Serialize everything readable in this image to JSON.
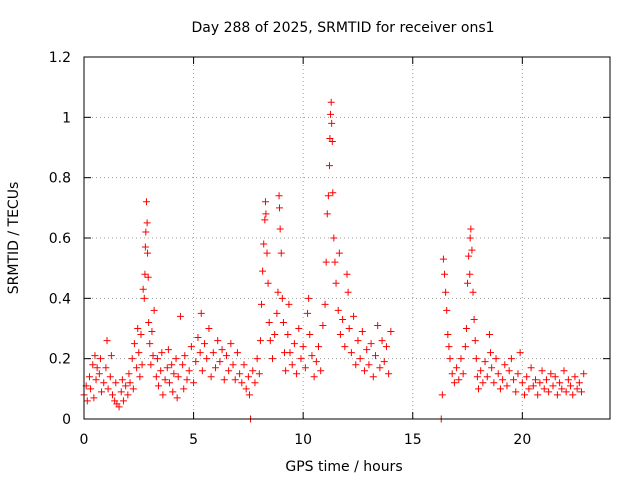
{
  "chart_data": {
    "type": "scatter",
    "title": "Day 288 of 2025, SRMTID for receiver ons1",
    "xlabel": "GPS time / hours",
    "ylabel": "SRMTID / TECUs",
    "xlim": [
      0,
      24
    ],
    "ylim": [
      0,
      1.2
    ],
    "xticks": [
      0,
      5,
      10,
      15,
      20
    ],
    "xtick_labels": [
      "0",
      "5",
      "10",
      "15",
      "20"
    ],
    "yticks": [
      0,
      0.2,
      0.4,
      0.6,
      0.8,
      1.0,
      1.2
    ],
    "ytick_labels": [
      "0",
      "0.2",
      "0.4",
      "0.6",
      "0.8",
      "1",
      "1.2"
    ],
    "grid": true,
    "marker": "+",
    "marker_color": "#ff0000",
    "series": [
      {
        "name": "ons1",
        "points": [
          [
            0.0,
            0.08
          ],
          [
            0.1,
            0.11
          ],
          [
            0.15,
            0.06
          ],
          [
            0.25,
            0.14
          ],
          [
            0.3,
            0.1
          ],
          [
            0.4,
            0.18
          ],
          [
            0.45,
            0.07
          ],
          [
            0.5,
            0.21
          ],
          [
            0.55,
            0.13
          ],
          [
            0.6,
            0.17
          ],
          [
            0.7,
            0.15
          ],
          [
            0.75,
            0.2
          ],
          [
            0.8,
            0.09
          ],
          [
            0.9,
            0.12
          ],
          [
            1.0,
            0.17
          ],
          [
            1.05,
            0.26
          ],
          [
            1.1,
            0.1
          ],
          [
            1.2,
            0.14
          ],
          [
            1.25,
            0.21
          ],
          [
            1.3,
            0.08
          ],
          [
            1.4,
            0.06
          ],
          [
            1.45,
            0.12
          ],
          [
            1.5,
            0.05
          ],
          [
            1.6,
            0.04
          ],
          [
            1.7,
            0.09
          ],
          [
            1.75,
            0.13
          ],
          [
            1.8,
            0.06
          ],
          [
            1.9,
            0.11
          ],
          [
            2.0,
            0.08
          ],
          [
            2.05,
            0.15
          ],
          [
            2.1,
            0.12
          ],
          [
            2.2,
            0.2
          ],
          [
            2.25,
            0.1
          ],
          [
            2.3,
            0.25
          ],
          [
            2.4,
            0.17
          ],
          [
            2.45,
            0.3
          ],
          [
            2.5,
            0.22
          ],
          [
            2.55,
            0.14
          ],
          [
            2.6,
            0.28
          ],
          [
            2.65,
            0.18
          ],
          [
            2.7,
            0.43
          ],
          [
            2.75,
            0.4
          ],
          [
            2.78,
            0.48
          ],
          [
            2.8,
            0.57
          ],
          [
            2.82,
            0.62
          ],
          [
            2.85,
            0.72
          ],
          [
            2.88,
            0.65
          ],
          [
            2.9,
            0.55
          ],
          [
            2.93,
            0.47
          ],
          [
            2.95,
            0.32
          ],
          [
            3.0,
            0.25
          ],
          [
            3.05,
            0.18
          ],
          [
            3.1,
            0.29
          ],
          [
            3.15,
            0.21
          ],
          [
            3.2,
            0.36
          ],
          [
            3.3,
            0.14
          ],
          [
            3.35,
            0.2
          ],
          [
            3.4,
            0.11
          ],
          [
            3.5,
            0.16
          ],
          [
            3.55,
            0.22
          ],
          [
            3.6,
            0.08
          ],
          [
            3.7,
            0.13
          ],
          [
            3.8,
            0.17
          ],
          [
            3.85,
            0.23
          ],
          [
            3.9,
            0.12
          ],
          [
            4.0,
            0.18
          ],
          [
            4.05,
            0.09
          ],
          [
            4.1,
            0.15
          ],
          [
            4.2,
            0.2
          ],
          [
            4.25,
            0.07
          ],
          [
            4.3,
            0.14
          ],
          [
            4.4,
            0.34
          ],
          [
            4.5,
            0.18
          ],
          [
            4.55,
            0.1
          ],
          [
            4.6,
            0.21
          ],
          [
            4.7,
            0.13
          ],
          [
            4.8,
            0.16
          ],
          [
            4.9,
            0.24
          ],
          [
            5.0,
            0.12
          ],
          [
            5.1,
            0.19
          ],
          [
            5.2,
            0.27
          ],
          [
            5.3,
            0.22
          ],
          [
            5.35,
            0.35
          ],
          [
            5.4,
            0.16
          ],
          [
            5.5,
            0.25
          ],
          [
            5.6,
            0.2
          ],
          [
            5.7,
            0.3
          ],
          [
            5.8,
            0.14
          ],
          [
            5.9,
            0.22
          ],
          [
            6.0,
            0.17
          ],
          [
            6.1,
            0.26
          ],
          [
            6.2,
            0.19
          ],
          [
            6.3,
            0.23
          ],
          [
            6.4,
            0.13
          ],
          [
            6.5,
            0.21
          ],
          [
            6.6,
            0.16
          ],
          [
            6.7,
            0.25
          ],
          [
            6.8,
            0.18
          ],
          [
            6.9,
            0.13
          ],
          [
            7.0,
            0.22
          ],
          [
            7.1,
            0.15
          ],
          [
            7.2,
            0.12
          ],
          [
            7.3,
            0.18
          ],
          [
            7.4,
            0.1
          ],
          [
            7.5,
            0.14
          ],
          [
            7.55,
            0.08
          ],
          [
            7.6,
            0.0
          ],
          [
            7.7,
            0.16
          ],
          [
            7.8,
            0.12
          ],
          [
            7.9,
            0.2
          ],
          [
            8.0,
            0.15
          ],
          [
            8.05,
            0.26
          ],
          [
            8.1,
            0.38
          ],
          [
            8.15,
            0.49
          ],
          [
            8.2,
            0.58
          ],
          [
            8.25,
            0.66
          ],
          [
            8.28,
            0.72
          ],
          [
            8.3,
            0.68
          ],
          [
            8.35,
            0.55
          ],
          [
            8.4,
            0.45
          ],
          [
            8.45,
            0.32
          ],
          [
            8.5,
            0.26
          ],
          [
            8.6,
            0.2
          ],
          [
            8.7,
            0.28
          ],
          [
            8.8,
            0.35
          ],
          [
            8.85,
            0.42
          ],
          [
            8.9,
            0.74
          ],
          [
            8.92,
            0.7
          ],
          [
            8.95,
            0.63
          ],
          [
            9.0,
            0.55
          ],
          [
            9.05,
            0.4
          ],
          [
            9.1,
            0.32
          ],
          [
            9.15,
            0.22
          ],
          [
            9.2,
            0.16
          ],
          [
            9.3,
            0.28
          ],
          [
            9.35,
            0.38
          ],
          [
            9.4,
            0.22
          ],
          [
            9.5,
            0.18
          ],
          [
            9.6,
            0.25
          ],
          [
            9.7,
            0.15
          ],
          [
            9.8,
            0.3
          ],
          [
            9.9,
            0.2
          ],
          [
            10.0,
            0.24
          ],
          [
            10.1,
            0.17
          ],
          [
            10.2,
            0.35
          ],
          [
            10.25,
            0.4
          ],
          [
            10.3,
            0.28
          ],
          [
            10.4,
            0.21
          ],
          [
            10.5,
            0.14
          ],
          [
            10.6,
            0.19
          ],
          [
            10.7,
            0.24
          ],
          [
            10.8,
            0.16
          ],
          [
            10.9,
            0.31
          ],
          [
            11.0,
            0.38
          ],
          [
            11.05,
            0.52
          ],
          [
            11.1,
            0.68
          ],
          [
            11.15,
            0.74
          ],
          [
            11.2,
            0.84
          ],
          [
            11.22,
            0.93
          ],
          [
            11.25,
            1.01
          ],
          [
            11.28,
            1.05
          ],
          [
            11.3,
            0.98
          ],
          [
            11.33,
            0.92
          ],
          [
            11.35,
            0.75
          ],
          [
            11.4,
            0.6
          ],
          [
            11.45,
            0.52
          ],
          [
            11.5,
            0.45
          ],
          [
            11.6,
            0.36
          ],
          [
            11.65,
            0.55
          ],
          [
            11.7,
            0.28
          ],
          [
            11.8,
            0.33
          ],
          [
            11.9,
            0.24
          ],
          [
            12.0,
            0.48
          ],
          [
            12.05,
            0.42
          ],
          [
            12.1,
            0.3
          ],
          [
            12.2,
            0.22
          ],
          [
            12.3,
            0.34
          ],
          [
            12.4,
            0.18
          ],
          [
            12.5,
            0.26
          ],
          [
            12.6,
            0.2
          ],
          [
            12.7,
            0.29
          ],
          [
            12.8,
            0.16
          ],
          [
            12.9,
            0.23
          ],
          [
            13.0,
            0.18
          ],
          [
            13.1,
            0.25
          ],
          [
            13.2,
            0.14
          ],
          [
            13.3,
            0.21
          ],
          [
            13.4,
            0.31
          ],
          [
            13.5,
            0.17
          ],
          [
            13.6,
            0.26
          ],
          [
            13.7,
            0.19
          ],
          [
            13.8,
            0.24
          ],
          [
            13.9,
            0.15
          ],
          [
            14.0,
            0.29
          ],
          [
            16.3,
            0.0
          ],
          [
            16.35,
            0.08
          ],
          [
            16.4,
            0.53
          ],
          [
            16.45,
            0.48
          ],
          [
            16.5,
            0.42
          ],
          [
            16.55,
            0.36
          ],
          [
            16.6,
            0.28
          ],
          [
            16.65,
            0.24
          ],
          [
            16.7,
            0.2
          ],
          [
            16.8,
            0.15
          ],
          [
            16.9,
            0.12
          ],
          [
            17.0,
            0.17
          ],
          [
            17.1,
            0.13
          ],
          [
            17.2,
            0.2
          ],
          [
            17.3,
            0.15
          ],
          [
            17.4,
            0.24
          ],
          [
            17.45,
            0.3
          ],
          [
            17.5,
            0.45
          ],
          [
            17.55,
            0.54
          ],
          [
            17.6,
            0.48
          ],
          [
            17.62,
            0.6
          ],
          [
            17.65,
            0.63
          ],
          [
            17.7,
            0.56
          ],
          [
            17.75,
            0.42
          ],
          [
            17.8,
            0.33
          ],
          [
            17.85,
            0.26
          ],
          [
            17.9,
            0.2
          ],
          [
            17.95,
            0.14
          ],
          [
            18.0,
            0.1
          ],
          [
            18.1,
            0.16
          ],
          [
            18.2,
            0.12
          ],
          [
            18.3,
            0.19
          ],
          [
            18.4,
            0.14
          ],
          [
            18.5,
            0.28
          ],
          [
            18.55,
            0.22
          ],
          [
            18.6,
            0.17
          ],
          [
            18.7,
            0.12
          ],
          [
            18.8,
            0.2
          ],
          [
            18.9,
            0.15
          ],
          [
            19.0,
            0.1
          ],
          [
            19.1,
            0.13
          ],
          [
            19.2,
            0.18
          ],
          [
            19.3,
            0.11
          ],
          [
            19.4,
            0.16
          ],
          [
            19.5,
            0.2
          ],
          [
            19.6,
            0.13
          ],
          [
            19.7,
            0.09
          ],
          [
            19.8,
            0.15
          ],
          [
            19.9,
            0.22
          ],
          [
            20.0,
            0.12
          ],
          [
            20.1,
            0.08
          ],
          [
            20.2,
            0.14
          ],
          [
            20.3,
            0.1
          ],
          [
            20.4,
            0.17
          ],
          [
            20.5,
            0.11
          ],
          [
            20.6,
            0.13
          ],
          [
            20.7,
            0.08
          ],
          [
            20.8,
            0.12
          ],
          [
            20.9,
            0.16
          ],
          [
            21.0,
            0.1
          ],
          [
            21.1,
            0.13
          ],
          [
            21.2,
            0.09
          ],
          [
            21.3,
            0.15
          ],
          [
            21.4,
            0.11
          ],
          [
            21.5,
            0.14
          ],
          [
            21.6,
            0.08
          ],
          [
            21.7,
            0.12
          ],
          [
            21.8,
            0.1
          ],
          [
            21.9,
            0.16
          ],
          [
            22.0,
            0.09
          ],
          [
            22.1,
            0.13
          ],
          [
            22.2,
            0.11
          ],
          [
            22.3,
            0.08
          ],
          [
            22.4,
            0.14
          ],
          [
            22.5,
            0.1
          ],
          [
            22.6,
            0.12
          ],
          [
            22.7,
            0.09
          ],
          [
            22.8,
            0.15
          ]
        ]
      }
    ]
  }
}
